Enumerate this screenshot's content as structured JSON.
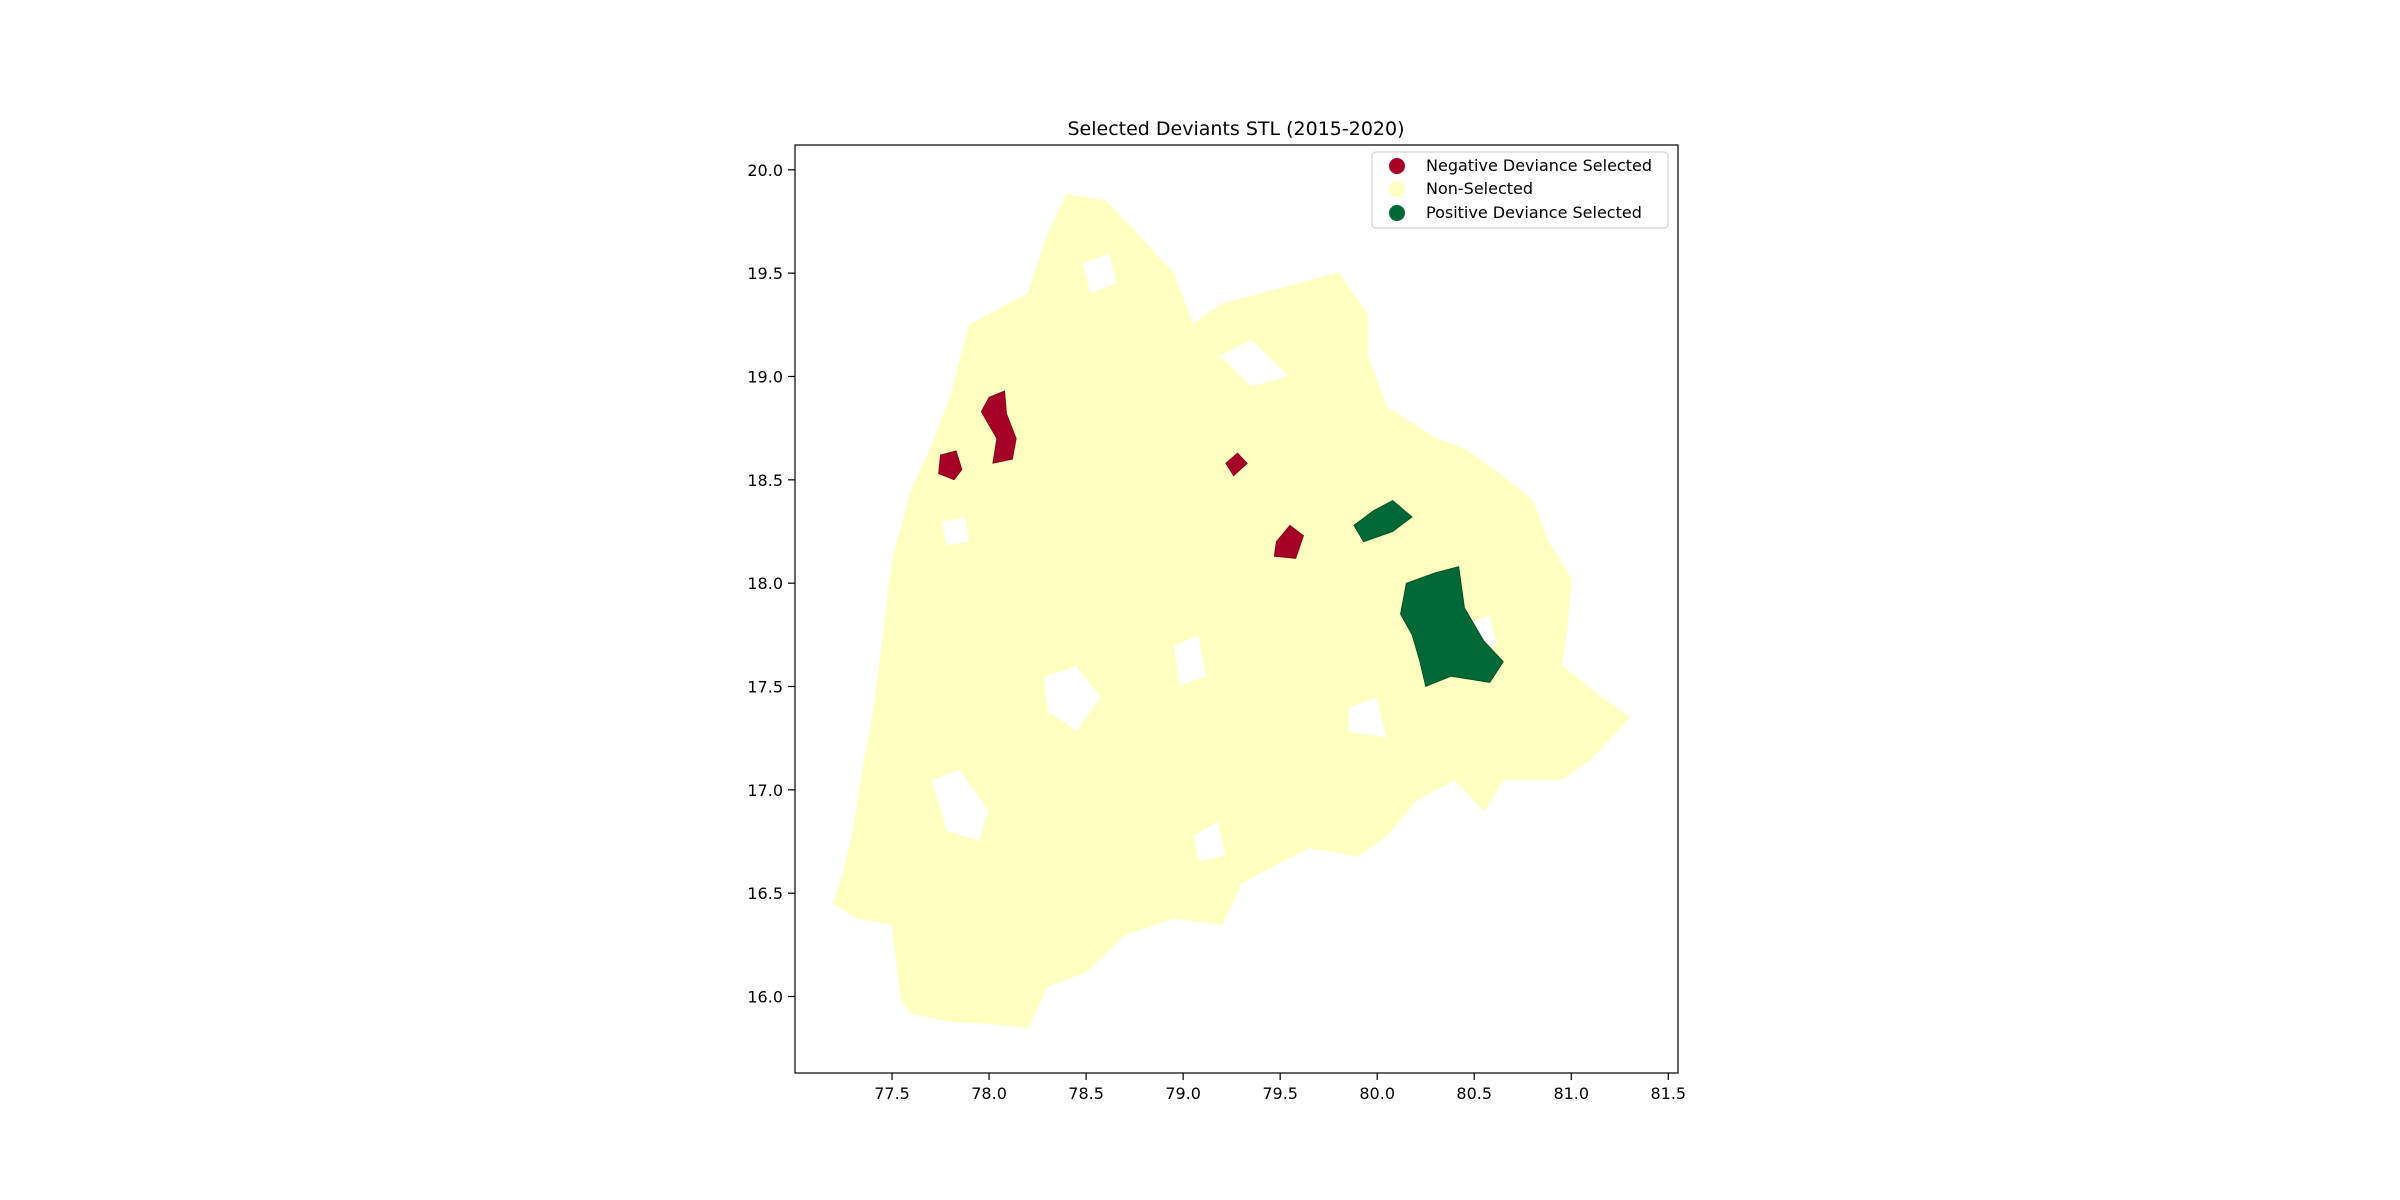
{
  "chart_data": {
    "type": "choropleth-map",
    "title": "Selected Deviants STL (2015-2020)",
    "xlabel": "",
    "ylabel": "",
    "xlim": [
      77.0,
      81.55
    ],
    "ylim": [
      15.63,
      20.12
    ],
    "x_ticks": [
      "77.5",
      "78.0",
      "78.5",
      "79.0",
      "79.5",
      "80.0",
      "80.5",
      "81.0",
      "81.5"
    ],
    "x_tick_values": [
      77.5,
      78.0,
      78.5,
      79.0,
      79.5,
      80.0,
      80.5,
      81.0,
      81.5
    ],
    "y_ticks": [
      "16.0",
      "16.5",
      "17.0",
      "17.5",
      "18.0",
      "18.5",
      "19.0",
      "19.5",
      "20.0"
    ],
    "y_tick_values": [
      16.0,
      16.5,
      17.0,
      17.5,
      18.0,
      18.5,
      19.0,
      19.5,
      20.0
    ],
    "legend": {
      "placement": "upper right",
      "entries": [
        {
          "label": "Negative Deviance Selected",
          "color": "#a50026"
        },
        {
          "label": "Non-Selected",
          "color": "#ffffbf"
        },
        {
          "label": "Positive Deviance Selected",
          "color": "#006837"
        }
      ]
    },
    "regions": {
      "non_selected_outline": [
        [
          77.2,
          16.45
        ],
        [
          77.32,
          16.38
        ],
        [
          77.5,
          16.35
        ],
        [
          77.55,
          15.98
        ],
        [
          77.6,
          15.92
        ],
        [
          77.8,
          15.88
        ],
        [
          78.0,
          15.87
        ],
        [
          78.2,
          15.85
        ],
        [
          78.3,
          16.05
        ],
        [
          78.5,
          16.12
        ],
        [
          78.7,
          16.3
        ],
        [
          78.95,
          16.38
        ],
        [
          79.2,
          16.35
        ],
        [
          79.3,
          16.55
        ],
        [
          79.5,
          16.65
        ],
        [
          79.65,
          16.72
        ],
        [
          79.9,
          16.68
        ],
        [
          80.05,
          16.78
        ],
        [
          80.2,
          16.95
        ],
        [
          80.4,
          17.05
        ],
        [
          80.55,
          16.9
        ],
        [
          80.65,
          17.05
        ],
        [
          80.95,
          17.05
        ],
        [
          81.1,
          17.15
        ],
        [
          81.3,
          17.35
        ],
        [
          81.15,
          17.45
        ],
        [
          80.95,
          17.6
        ],
        [
          80.98,
          17.8
        ],
        [
          81.0,
          18.02
        ],
        [
          80.88,
          18.2
        ],
        [
          80.8,
          18.4
        ],
        [
          80.6,
          18.55
        ],
        [
          80.45,
          18.65
        ],
        [
          80.3,
          18.7
        ],
        [
          80.05,
          18.85
        ],
        [
          79.95,
          19.1
        ],
        [
          79.95,
          19.3
        ],
        [
          79.8,
          19.5
        ],
        [
          79.6,
          19.45
        ],
        [
          79.4,
          19.4
        ],
        [
          79.2,
          19.35
        ],
        [
          79.05,
          19.25
        ],
        [
          78.95,
          19.5
        ],
        [
          78.8,
          19.65
        ],
        [
          78.6,
          19.85
        ],
        [
          78.4,
          19.88
        ],
        [
          78.3,
          19.68
        ],
        [
          78.2,
          19.4
        ],
        [
          78.0,
          19.3
        ],
        [
          77.9,
          19.25
        ],
        [
          77.8,
          18.9
        ],
        [
          77.7,
          18.65
        ],
        [
          77.6,
          18.45
        ],
        [
          77.5,
          18.1
        ],
        [
          77.45,
          17.7
        ],
        [
          77.4,
          17.35
        ],
        [
          77.35,
          17.1
        ],
        [
          77.3,
          16.8
        ],
        [
          77.25,
          16.6
        ]
      ],
      "holes": [
        [
          [
            77.7,
            17.05
          ],
          [
            77.85,
            17.1
          ],
          [
            78.0,
            16.9
          ],
          [
            77.95,
            16.75
          ],
          [
            77.78,
            16.8
          ]
        ],
        [
          [
            78.28,
            17.55
          ],
          [
            78.45,
            17.6
          ],
          [
            78.58,
            17.45
          ],
          [
            78.45,
            17.28
          ],
          [
            78.3,
            17.38
          ]
        ],
        [
          [
            78.95,
            17.7
          ],
          [
            79.08,
            17.75
          ],
          [
            79.12,
            17.55
          ],
          [
            78.98,
            17.5
          ]
        ],
        [
          [
            78.48,
            19.55
          ],
          [
            78.62,
            19.6
          ],
          [
            78.66,
            19.45
          ],
          [
            78.52,
            19.4
          ]
        ],
        [
          [
            79.18,
            19.1
          ],
          [
            79.35,
            19.18
          ],
          [
            79.55,
            19.0
          ],
          [
            79.35,
            18.95
          ]
        ],
        [
          [
            79.85,
            17.4
          ],
          [
            80.0,
            17.45
          ],
          [
            80.05,
            17.25
          ],
          [
            79.85,
            17.28
          ]
        ],
        [
          [
            80.45,
            17.8
          ],
          [
            80.58,
            17.85
          ],
          [
            80.62,
            17.7
          ],
          [
            80.48,
            17.65
          ]
        ],
        [
          [
            77.75,
            18.3
          ],
          [
            77.88,
            18.32
          ],
          [
            77.9,
            18.2
          ],
          [
            77.78,
            18.18
          ]
        ],
        [
          [
            79.05,
            16.78
          ],
          [
            79.18,
            16.85
          ],
          [
            79.22,
            16.68
          ],
          [
            79.08,
            16.65
          ]
        ]
      ],
      "negative_deviance": [
        [
          [
            78.0,
            18.9
          ],
          [
            78.08,
            18.93
          ],
          [
            78.09,
            18.82
          ],
          [
            78.14,
            18.7
          ],
          [
            78.12,
            18.6
          ],
          [
            78.02,
            18.58
          ],
          [
            78.04,
            18.7
          ],
          [
            77.96,
            18.83
          ]
        ],
        [
          [
            77.75,
            18.62
          ],
          [
            77.83,
            18.64
          ],
          [
            77.86,
            18.55
          ],
          [
            77.82,
            18.5
          ],
          [
            77.74,
            18.53
          ]
        ],
        [
          [
            79.22,
            18.58
          ],
          [
            79.28,
            18.63
          ],
          [
            79.33,
            18.58
          ],
          [
            79.26,
            18.52
          ]
        ],
        [
          [
            79.48,
            18.2
          ],
          [
            79.55,
            18.28
          ],
          [
            79.62,
            18.23
          ],
          [
            79.58,
            18.12
          ],
          [
            79.47,
            18.13
          ]
        ]
      ],
      "positive_deviance": [
        [
          [
            79.88,
            18.28
          ],
          [
            79.98,
            18.35
          ],
          [
            80.08,
            18.4
          ],
          [
            80.18,
            18.32
          ],
          [
            80.08,
            18.25
          ],
          [
            79.93,
            18.2
          ]
        ],
        [
          [
            80.15,
            18.0
          ],
          [
            80.3,
            18.05
          ],
          [
            80.42,
            18.08
          ],
          [
            80.45,
            17.88
          ],
          [
            80.55,
            17.72
          ],
          [
            80.65,
            17.62
          ],
          [
            80.58,
            17.52
          ],
          [
            80.38,
            17.55
          ],
          [
            80.25,
            17.5
          ],
          [
            80.22,
            17.62
          ],
          [
            80.18,
            17.75
          ],
          [
            80.12,
            17.85
          ]
        ]
      ]
    }
  }
}
